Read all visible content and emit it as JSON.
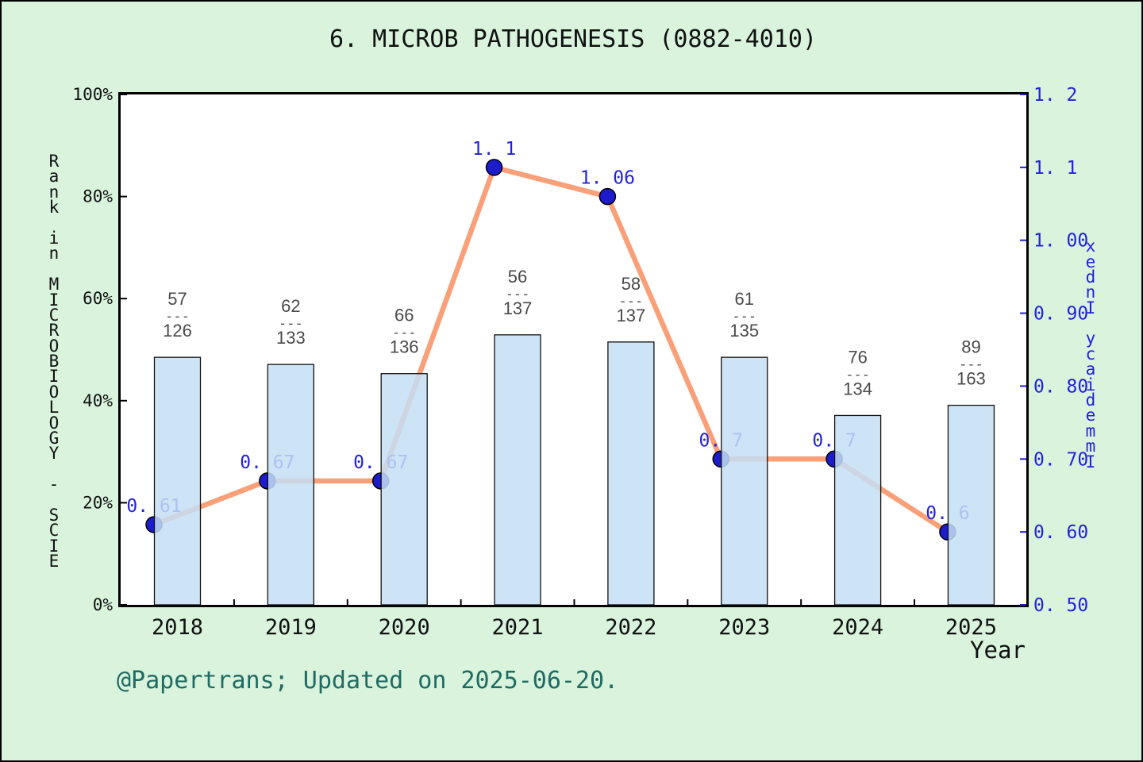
{
  "title": "6. MICROB PATHOGENESIS (0882-4010)",
  "footer": "@Papertrans; Updated on 2025-06-20.",
  "axes": {
    "left": {
      "label": "Rank in MICROBIOLOGY - SCIE",
      "ticks": [
        "0%",
        "20%",
        "40%",
        "60%",
        "80%",
        "100%"
      ],
      "tick_values": [
        0,
        20,
        40,
        60,
        80,
        100
      ],
      "range": [
        0,
        100
      ]
    },
    "right": {
      "label": "Immediacy Index",
      "ticks": [
        "0. 50",
        "0. 60",
        "0. 70",
        "0. 80",
        "0. 90",
        "1. 00",
        "1. 1",
        "1. 2"
      ],
      "tick_values": [
        0.5,
        0.6,
        0.7,
        0.8,
        0.9,
        1.0,
        1.1,
        1.2
      ],
      "range": [
        0.5,
        1.2
      ]
    },
    "x": {
      "label": "Year",
      "ticks": [
        "2018",
        "2019",
        "2020",
        "2021",
        "2022",
        "2023",
        "2024",
        "2025"
      ]
    }
  },
  "chart_data": {
    "type": "bar+line",
    "categories": [
      2018,
      2019,
      2020,
      2021,
      2022,
      2023,
      2024,
      2025
    ],
    "series": [
      {
        "name": "rank-in-category",
        "type": "bar",
        "axis": "left",
        "bar_top_percent": [
          48.5,
          47.1,
          45.3,
          52.9,
          51.5,
          48.5,
          37.1,
          39.1
        ],
        "rank_labels": [
          {
            "numerator": "57",
            "denominator": "126"
          },
          {
            "numerator": "62",
            "denominator": "133"
          },
          {
            "numerator": "66",
            "denominator": "136"
          },
          {
            "numerator": "56",
            "denominator": "137"
          },
          {
            "numerator": "58",
            "denominator": "137"
          },
          {
            "numerator": "61",
            "denominator": "135"
          },
          {
            "numerator": "76",
            "denominator": "134"
          },
          {
            "numerator": "89",
            "denominator": "163"
          }
        ],
        "fraction_divider": "---"
      },
      {
        "name": "immediacy-index",
        "type": "line",
        "axis": "right",
        "values": [
          0.61,
          0.67,
          0.67,
          1.1,
          1.06,
          0.7,
          0.7,
          0.6
        ],
        "point_labels": [
          "0. 61",
          "0. 67",
          "0. 67",
          "1. 1",
          "1. 06",
          "0. 7",
          "0. 7",
          "0. 6"
        ]
      }
    ],
    "colors": {
      "background": "#d9f3dc",
      "plot_background": "#ffffff",
      "plot_border": "#000000",
      "bar_fill": "#c4def4",
      "bar_fill_opacity": 0.85,
      "bar_border": "#111111",
      "line": "#faa078",
      "marker": "#1c1ccd",
      "marker_border": "#000000",
      "value_label": "#2222dd",
      "fraction_label": "#4a4a4a",
      "right_axis_text": "#2222dd",
      "left_axis_text": "#111111",
      "footer_text": "#1e6b63"
    }
  }
}
